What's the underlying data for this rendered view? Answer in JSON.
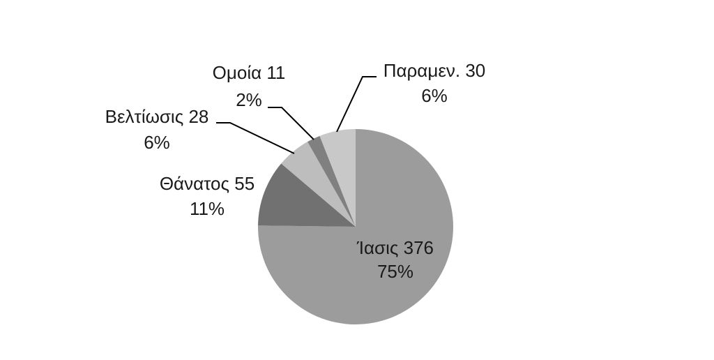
{
  "chart_data": {
    "type": "pie",
    "slices": [
      {
        "label": "Ίασις",
        "value": 376,
        "percent": "75%",
        "color": "#9c9c9c"
      },
      {
        "label": "Θάνατος",
        "value": 55,
        "percent": "11%",
        "color": "#717171"
      },
      {
        "label": "Βελτίωσις",
        "value": 28,
        "percent": "6%",
        "color": "#bdbdbd"
      },
      {
        "label": "Ομοία",
        "value": 11,
        "percent": "2%",
        "color": "#808080"
      },
      {
        "label": "Παραμεν.",
        "value": 30,
        "percent": "6%",
        "color": "#c8c8c8"
      }
    ],
    "start": "12 o'clock",
    "direction": "clockwise",
    "legend": "none",
    "data_labels": "name, value and percent"
  }
}
